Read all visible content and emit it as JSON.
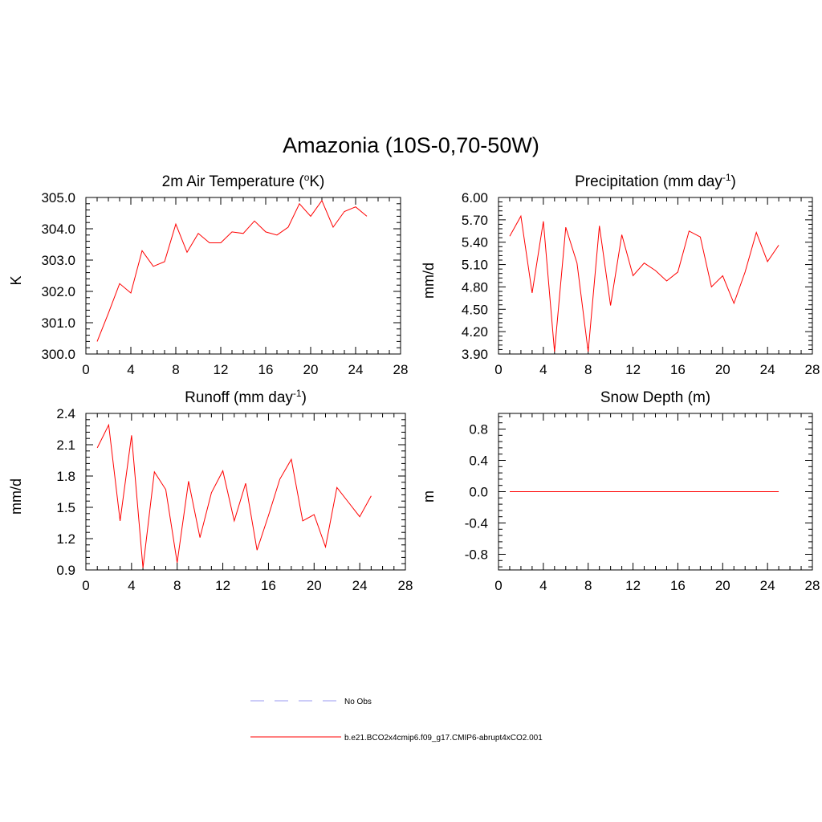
{
  "figure": {
    "title": "Amazonia (10S-0,70-50W)"
  },
  "legend": {
    "items": [
      {
        "label": "No Obs",
        "color": "#9a9af2",
        "style": "dashed"
      },
      {
        "label": "b.e21.BCO2x4cmip6.f09_g17.CMIP6-abrupt4xCO2.001",
        "color": "#ff0000",
        "style": "solid"
      }
    ]
  },
  "chart_data": [
    {
      "type": "line",
      "title": "2m Air Temperature (",
      "title_sup": "o",
      "title_after": "K)",
      "ylabel": "K",
      "xlim": [
        0,
        28
      ],
      "ylim": [
        300.0,
        305.0
      ],
      "xticks": [
        0,
        4,
        8,
        12,
        16,
        20,
        24,
        28
      ],
      "yticks": [
        "300.0",
        "301.0",
        "302.0",
        "303.0",
        "304.0",
        "305.0"
      ],
      "series": [
        {
          "color": "#ff0000",
          "x": [
            1,
            2,
            3,
            4,
            5,
            6,
            7,
            8,
            9,
            10,
            11,
            12,
            13,
            14,
            15,
            16,
            17,
            18,
            19,
            20,
            21,
            22,
            23,
            24,
            25
          ],
          "y": [
            300.4,
            301.3,
            302.25,
            301.95,
            303.3,
            302.8,
            302.95,
            304.15,
            303.25,
            303.85,
            303.55,
            303.55,
            303.9,
            303.85,
            304.25,
            303.9,
            303.8,
            304.05,
            304.8,
            304.4,
            304.9,
            304.05,
            304.55,
            304.7,
            304.4
          ]
        }
      ]
    },
    {
      "type": "line",
      "title": "Precipitation (mm day",
      "title_sup": "-1",
      "title_after": ")",
      "ylabel": "mm/d",
      "xlim": [
        0,
        28
      ],
      "ylim": [
        3.9,
        6.0
      ],
      "xticks": [
        0,
        4,
        8,
        12,
        16,
        20,
        24,
        28
      ],
      "yticks": [
        "3.90",
        "4.20",
        "4.50",
        "4.80",
        "5.10",
        "5.40",
        "5.70",
        "6.00"
      ],
      "series": [
        {
          "color": "#ff0000",
          "x": [
            1,
            2,
            3,
            4,
            5,
            6,
            7,
            8,
            9,
            10,
            11,
            12,
            13,
            14,
            15,
            16,
            17,
            18,
            19,
            20,
            21,
            22,
            23,
            24,
            25
          ],
          "y": [
            5.48,
            5.75,
            4.72,
            5.68,
            3.93,
            5.6,
            5.12,
            3.93,
            5.62,
            4.55,
            5.5,
            4.95,
            5.12,
            5.02,
            4.88,
            5.0,
            5.55,
            5.47,
            4.8,
            4.95,
            4.58,
            5.0,
            5.53,
            5.14,
            5.36
          ]
        }
      ]
    },
    {
      "type": "line",
      "title": "Runoff (mm day",
      "title_sup": "-1",
      "title_after": ")",
      "ylabel": "mm/d",
      "xlim": [
        0,
        28
      ],
      "ylim": [
        0.9,
        2.4
      ],
      "xticks": [
        0,
        4,
        8,
        12,
        16,
        20,
        24,
        28
      ],
      "yticks": [
        "0.9",
        "1.2",
        "1.5",
        "1.8",
        "2.1",
        "2.4"
      ],
      "series": [
        {
          "color": "#ff0000",
          "x": [
            1,
            2,
            3,
            4,
            5,
            6,
            7,
            8,
            9,
            10,
            11,
            12,
            13,
            14,
            15,
            16,
            17,
            18,
            19,
            20,
            21,
            22,
            23,
            24,
            25
          ],
          "y": [
            2.07,
            2.29,
            1.37,
            2.19,
            0.92,
            1.84,
            1.67,
            0.97,
            1.75,
            1.21,
            1.64,
            1.85,
            1.37,
            1.73,
            1.09,
            1.42,
            1.77,
            1.96,
            1.37,
            1.43,
            1.12,
            1.69,
            1.55,
            1.41,
            1.61
          ]
        }
      ]
    },
    {
      "type": "line",
      "title": "Snow Depth (m)",
      "title_sup": "",
      "title_after": "",
      "ylabel": "m",
      "xlim": [
        0,
        28
      ],
      "ylim": [
        -1.0,
        1.0
      ],
      "xticks": [
        0,
        4,
        8,
        12,
        16,
        20,
        24,
        28
      ],
      "yticks": [
        "-0.8",
        "-0.4",
        "0.0",
        "0.4",
        "0.8"
      ],
      "series": [
        {
          "color": "#ff0000",
          "x": [
            1,
            25
          ],
          "y": [
            0.0,
            0.0
          ]
        }
      ]
    }
  ]
}
